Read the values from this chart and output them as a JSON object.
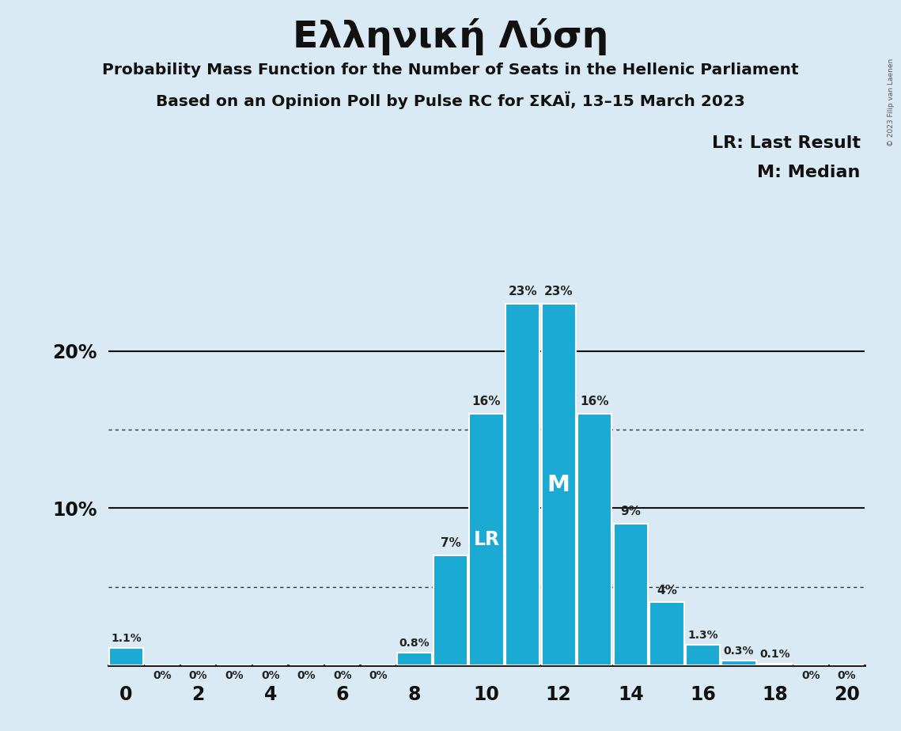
{
  "title": "Ελληνική Λύση",
  "subtitle1": "Probability Mass Function for the Number of Seats in the Hellenic Parliament",
  "subtitle2": "Based on an Opinion Poll by Pulse RC for ΣΚΑΪ, 13–15 March 2023",
  "background_color": "#daeaf5",
  "bar_color": "#1aaad4",
  "seats": [
    0,
    1,
    2,
    3,
    4,
    5,
    6,
    7,
    8,
    9,
    10,
    11,
    12,
    13,
    14,
    15,
    16,
    17,
    18,
    19,
    20
  ],
  "probabilities": [
    1.1,
    0.0,
    0.0,
    0.0,
    0.0,
    0.0,
    0.0,
    0.0,
    0.8,
    7.0,
    16.0,
    23.0,
    23.0,
    16.0,
    9.0,
    4.0,
    1.3,
    0.3,
    0.1,
    0.0,
    0.0
  ],
  "labels": [
    "1.1%",
    "0%",
    "0%",
    "0%",
    "0%",
    "0%",
    "0%",
    "0%",
    "0.8%",
    "7%",
    "16%",
    "23%",
    "23%",
    "16%",
    "9%",
    "4%",
    "1.3%",
    "0.3%",
    "0.1%",
    "0%",
    "0%"
  ],
  "lr_seat": 10,
  "median_seat": 12,
  "legend_lr": "LR: Last Result",
  "legend_m": "M: Median",
  "watermark": "© 2023 Filip van Laenen",
  "xlim": [
    -0.5,
    20.5
  ],
  "ylim": [
    0,
    27
  ]
}
